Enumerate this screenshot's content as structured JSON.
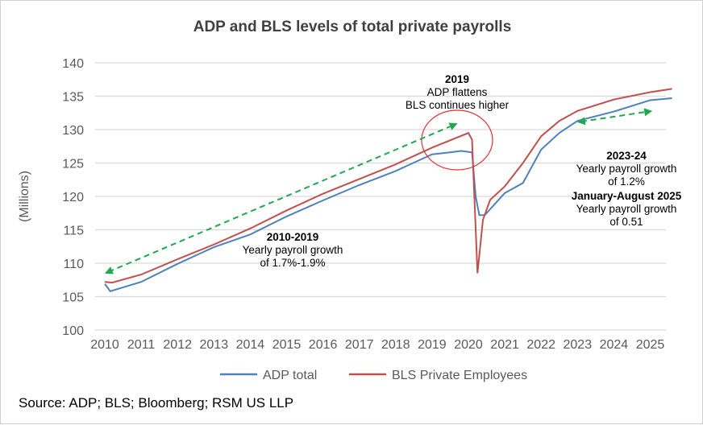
{
  "chart_data": {
    "type": "line",
    "title": "ADP and BLS levels of total private payrolls",
    "ylabel": "(Millions)",
    "xlabel": "",
    "ylim": [
      100,
      140
    ],
    "yticks": [
      100,
      105,
      110,
      115,
      120,
      125,
      130,
      135,
      140
    ],
    "xticks": [
      2010,
      2011,
      2012,
      2013,
      2014,
      2015,
      2016,
      2017,
      2018,
      2019,
      2020,
      2021,
      2022,
      2023,
      2024,
      2025
    ],
    "grid": "horizontal",
    "legend": "bottom",
    "series": [
      {
        "name": "ADP total",
        "color": "#4e81bd",
        "points": [
          [
            2010,
            106.9
          ],
          [
            2010.15,
            105.8
          ],
          [
            2011,
            107.2
          ],
          [
            2012,
            109.9
          ],
          [
            2013,
            112.4
          ],
          [
            2014,
            114.3
          ],
          [
            2015,
            117.0
          ],
          [
            2016,
            119.4
          ],
          [
            2017,
            121.7
          ],
          [
            2018,
            123.8
          ],
          [
            2019,
            126.3
          ],
          [
            2019.5,
            126.6
          ],
          [
            2019.8,
            126.8
          ],
          [
            2020.1,
            126.6
          ],
          [
            2020.2,
            120.0
          ],
          [
            2020.3,
            117.2
          ],
          [
            2020.45,
            117.2
          ],
          [
            2021,
            120.5
          ],
          [
            2021.5,
            122.0
          ],
          [
            2022,
            127.0
          ],
          [
            2022.5,
            129.5
          ],
          [
            2023,
            131.3
          ],
          [
            2024,
            132.7
          ],
          [
            2025,
            134.4
          ],
          [
            2025.6,
            134.7
          ]
        ]
      },
      {
        "name": "BLS Private Employees",
        "color": "#c0504d",
        "points": [
          [
            2010,
            107.2
          ],
          [
            2010.2,
            107.1
          ],
          [
            2011,
            108.3
          ],
          [
            2012,
            110.6
          ],
          [
            2013,
            112.8
          ],
          [
            2014,
            115.2
          ],
          [
            2015,
            117.9
          ],
          [
            2016,
            120.4
          ],
          [
            2017,
            122.6
          ],
          [
            2018,
            124.8
          ],
          [
            2019,
            127.3
          ],
          [
            2020.0,
            129.5
          ],
          [
            2020.1,
            128.5
          ],
          [
            2020.25,
            108.5
          ],
          [
            2020.4,
            116.5
          ],
          [
            2020.6,
            119.5
          ],
          [
            2021,
            121.5
          ],
          [
            2021.5,
            125.0
          ],
          [
            2022,
            129.0
          ],
          [
            2022.5,
            131.3
          ],
          [
            2023,
            132.8
          ],
          [
            2024,
            134.5
          ],
          [
            2025,
            135.6
          ],
          [
            2025.6,
            136.1
          ]
        ]
      }
    ],
    "annotations": [
      {
        "title": "2019",
        "lines": [
          "ADP flattens",
          "BLS continues higher"
        ]
      },
      {
        "title": "2010-2019",
        "lines": [
          "Yearly payroll growth",
          "of 1.7%-1.9%"
        ]
      },
      {
        "title": "2023-24",
        "lines": [
          "Yearly payroll growth",
          "of 1.2%"
        ]
      },
      {
        "title": "January-August 2025",
        "lines": [
          "Yearly payroll growth",
          "of 0.51"
        ]
      }
    ],
    "arrow_color": "#1fa84f",
    "circle_color": "#e03030"
  },
  "source": "Source: ADP; BLS; Bloomberg; RSM US LLP"
}
